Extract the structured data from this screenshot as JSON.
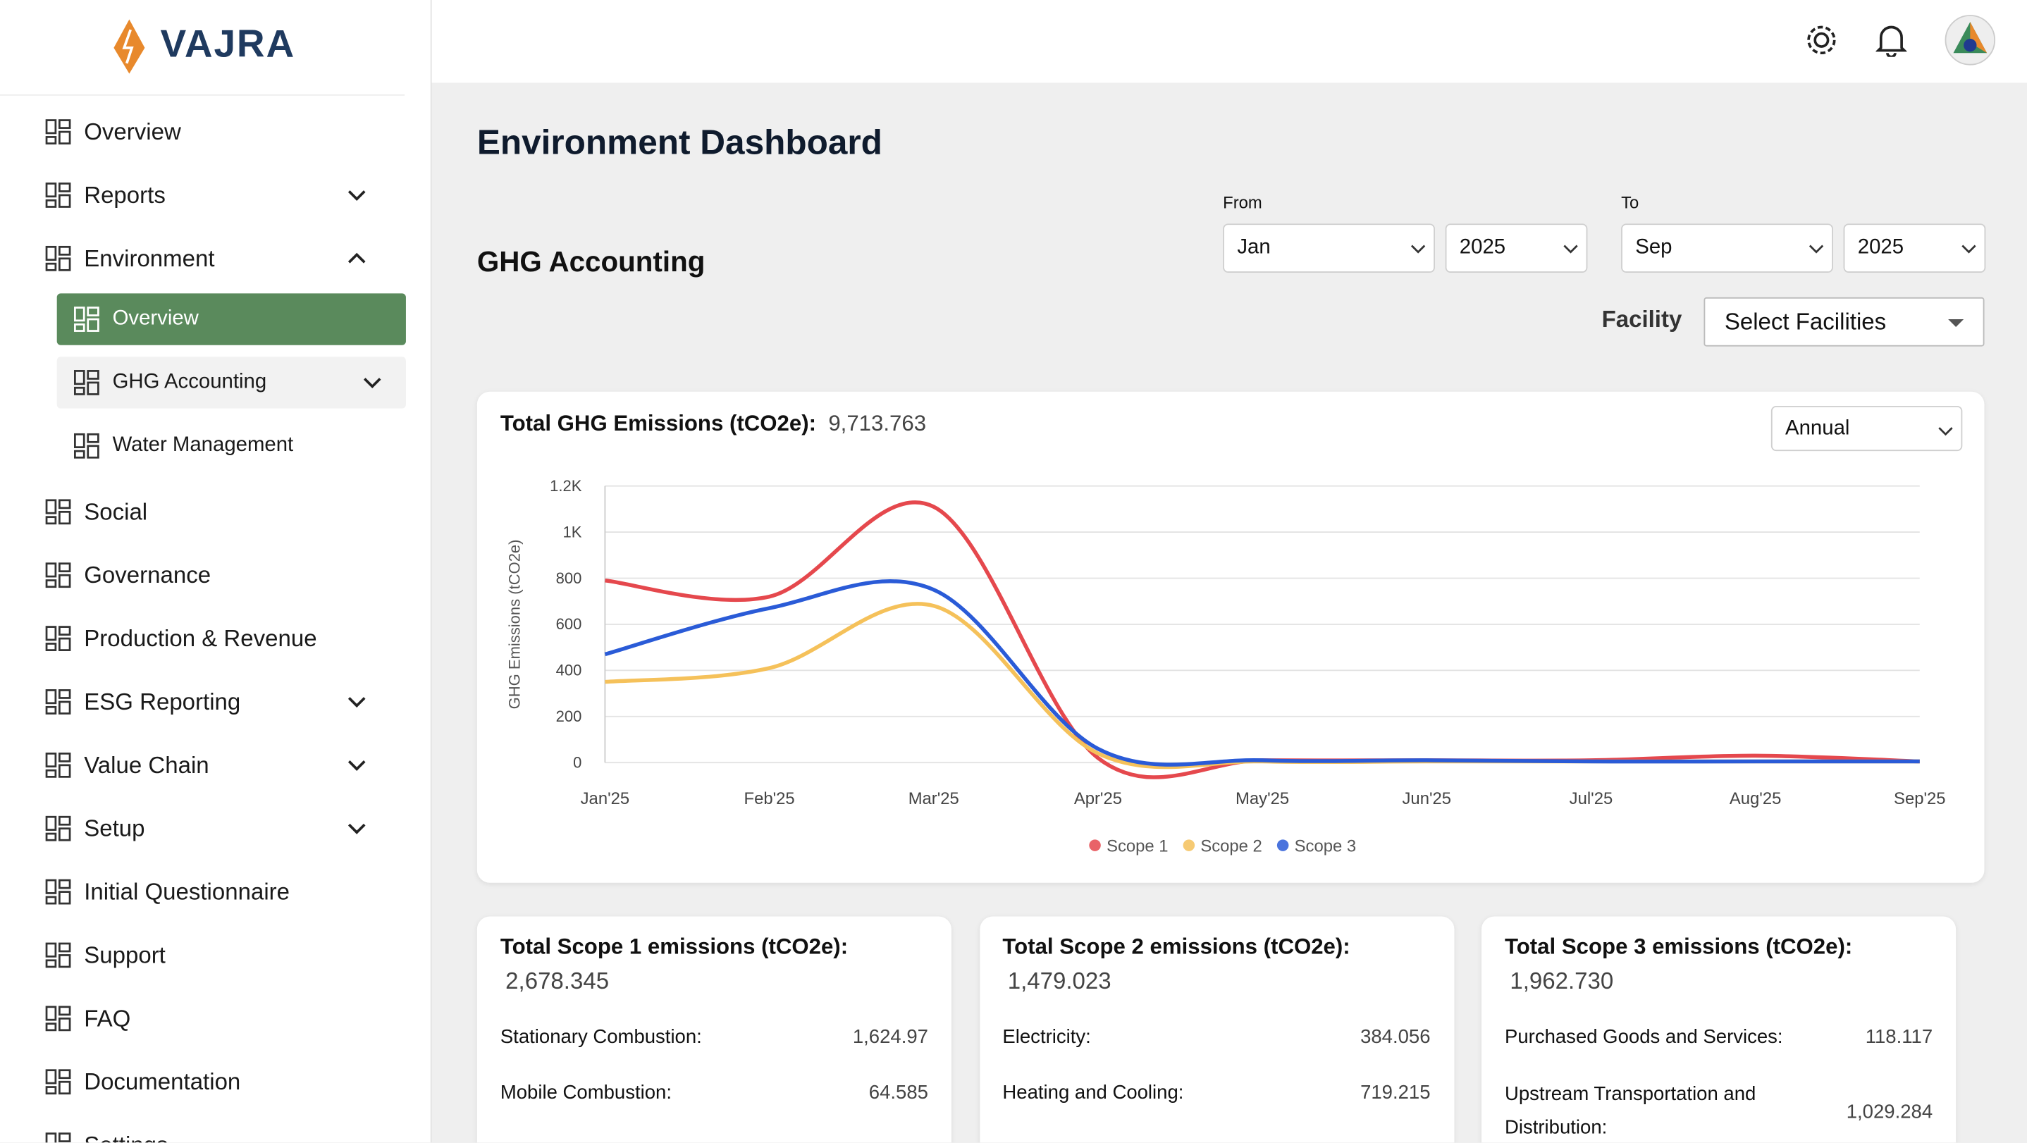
{
  "brand": "VAJRA",
  "sidebar": {
    "items": [
      {
        "label": "Overview"
      },
      {
        "label": "Reports",
        "chevron": "down"
      },
      {
        "label": "Environment",
        "chevron": "up",
        "children": [
          {
            "label": "Overview",
            "active": true
          },
          {
            "label": "GHG Accounting",
            "chevron": "down"
          },
          {
            "label": "Water Management"
          }
        ]
      },
      {
        "label": "Social"
      },
      {
        "label": "Governance"
      },
      {
        "label": "Production & Revenue"
      },
      {
        "label": "ESG Reporting",
        "chevron": "down"
      },
      {
        "label": "Value Chain",
        "chevron": "down"
      },
      {
        "label": "Setup",
        "chevron": "down"
      },
      {
        "label": "Initial Questionnaire"
      },
      {
        "label": "Support"
      },
      {
        "label": "FAQ"
      },
      {
        "label": "Documentation"
      },
      {
        "label": "Settings"
      }
    ]
  },
  "header": {
    "title": "Environment Dashboard",
    "section": "GHG Accounting",
    "from_label": "From",
    "from_month": "Jan",
    "from_year": "2025",
    "to_label": "To",
    "to_month": "Sep",
    "to_year": "2025",
    "facility_label": "Facility",
    "facility_placeholder": "Select Facilities"
  },
  "chart_data": {
    "type": "line",
    "title": "Total GHG Emissions (tCO2e):",
    "total": "9,713.763",
    "period": "Annual",
    "ylabel": "GHG Emissions (tCO2e)",
    "categories": [
      "Jan'25",
      "Feb'25",
      "Mar'25",
      "Apr'25",
      "May'25",
      "Jun'25",
      "Jul'25",
      "Aug'25",
      "Sep'25"
    ],
    "ylim": [
      0,
      1200
    ],
    "yticks": [
      0,
      200,
      400,
      600,
      800,
      {
        "value": 1000,
        "label": "1K"
      },
      {
        "value": 1200,
        "label": "1.2K"
      }
    ],
    "grid": true,
    "series": [
      {
        "name": "Scope 1",
        "color": "#e5484d",
        "values": [
          790,
          720,
          1110,
          20,
          10,
          10,
          10,
          30,
          5
        ]
      },
      {
        "name": "Scope 2",
        "color": "#f5c15a",
        "values": [
          350,
          410,
          680,
          40,
          5,
          5,
          5,
          5,
          5
        ]
      },
      {
        "name": "Scope 3",
        "color": "#2a5bd7",
        "values": [
          470,
          670,
          750,
          60,
          10,
          10,
          5,
          5,
          5
        ]
      }
    ]
  },
  "cards": [
    {
      "title": "Total Scope 1 emissions (tCO2e):",
      "total": "2,678.345",
      "rows": [
        [
          "Stationary Combustion:",
          "1,624.97"
        ],
        [
          "Mobile Combustion:",
          "64.585"
        ]
      ]
    },
    {
      "title": "Total Scope 2 emissions (tCO2e):",
      "total": "1,479.023",
      "rows": [
        [
          "Electricity:",
          "384.056"
        ],
        [
          "Heating and Cooling:",
          "719.215"
        ]
      ]
    },
    {
      "title": "Total Scope 3 emissions (tCO2e):",
      "total": "1,962.730",
      "rows": [
        [
          "Purchased Goods and Services:",
          "118.117"
        ],
        [
          "Upstream Transportation and Distribution:",
          "1,029.284"
        ]
      ]
    }
  ]
}
